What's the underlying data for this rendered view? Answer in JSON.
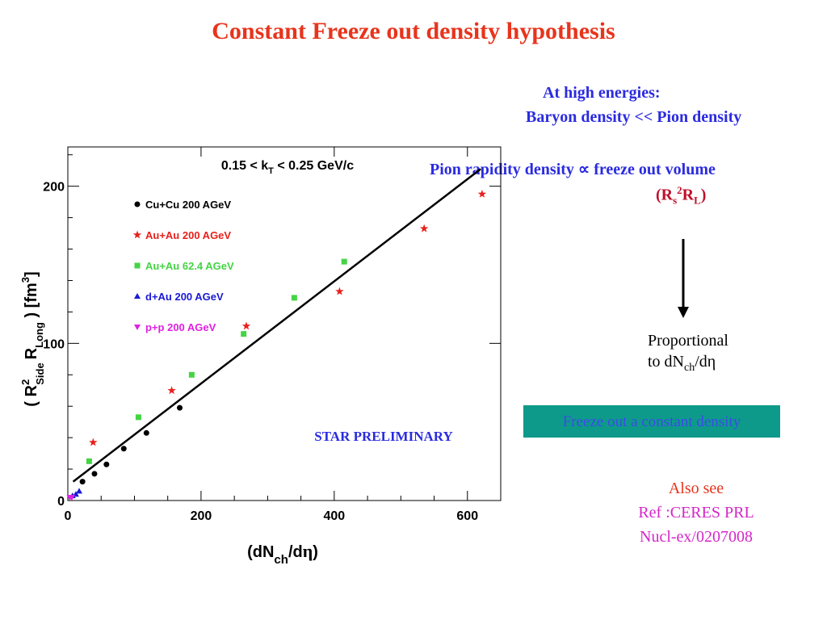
{
  "slide": {
    "title": "Constant Freeze out density hypothesis",
    "high_energy_line1": "At high energies:",
    "high_energy_line2": "Baryon density << Pion density",
    "pion_relation": "Pion rapidity density ∝ freeze out volume",
    "volume_expr": {
      "open": "(R",
      "s": "s",
      "sup": "2",
      "r": "R",
      "l": "L",
      "close": ")"
    },
    "proportional_line1": "Proportional",
    "proportional_line2_pre": "to dN",
    "proportional_line2_sub": "ch",
    "proportional_line2_post": "/dη",
    "freeze_box": "Freeze out a constant density",
    "also_see": "Also see",
    "ref1": "Ref :CERES PRL",
    "ref2": "Nucl-ex/0207008",
    "colors": {
      "title": "#e8341c",
      "blue_text": "#2b2be0",
      "box_bg": "#0e9a8a",
      "box_text": "#3a4be8",
      "magenta": "#d426c8"
    }
  },
  "chart_data": {
    "type": "scatter",
    "title": "0.15 < k_T < 0.25 GeV/c",
    "xlabel": "(dN_ch/dη)",
    "ylabel": "( R²_Side R_Long ) [fm³]",
    "xlim": [
      0,
      650
    ],
    "ylim": [
      0,
      225
    ],
    "x_ticks": [
      "0",
      "200",
      "400",
      "600"
    ],
    "y_ticks": [
      "0",
      "100",
      "200"
    ],
    "annotation": "STAR PRELIMINARY",
    "fit_line": {
      "x": [
        8,
        620
      ],
      "y": [
        12,
        211
      ]
    },
    "series": [
      {
        "name": "Cu+Cu 200 AGeV",
        "color": "#000000",
        "marker": "circle",
        "points": [
          [
            22,
            12
          ],
          [
            40,
            17
          ],
          [
            58,
            23
          ],
          [
            84,
            33
          ],
          [
            118,
            43
          ],
          [
            168,
            59
          ]
        ]
      },
      {
        "name": "Au+Au 200 AGeV",
        "color": "#e8201c",
        "marker": "star",
        "points": [
          [
            38,
            37
          ],
          [
            156,
            70
          ],
          [
            268,
            111
          ],
          [
            408,
            133
          ],
          [
            535,
            173
          ],
          [
            622,
            195
          ]
        ]
      },
      {
        "name": "Au+Au 62.4 AGeV",
        "color": "#44d444",
        "marker": "square",
        "points": [
          [
            32,
            25
          ],
          [
            106,
            53
          ],
          [
            186,
            80
          ],
          [
            264,
            106
          ],
          [
            340,
            129
          ],
          [
            415,
            152
          ]
        ]
      },
      {
        "name": "d+Au 200 AGeV",
        "color": "#1a1ad4",
        "marker": "triangle-up",
        "points": [
          [
            7,
            3
          ],
          [
            12,
            4
          ],
          [
            17,
            6
          ]
        ]
      },
      {
        "name": "p+p 200 AGeV",
        "color": "#e020e0",
        "marker": "triangle-down",
        "points": [
          [
            3,
            2
          ],
          [
            6,
            2
          ]
        ]
      }
    ]
  }
}
